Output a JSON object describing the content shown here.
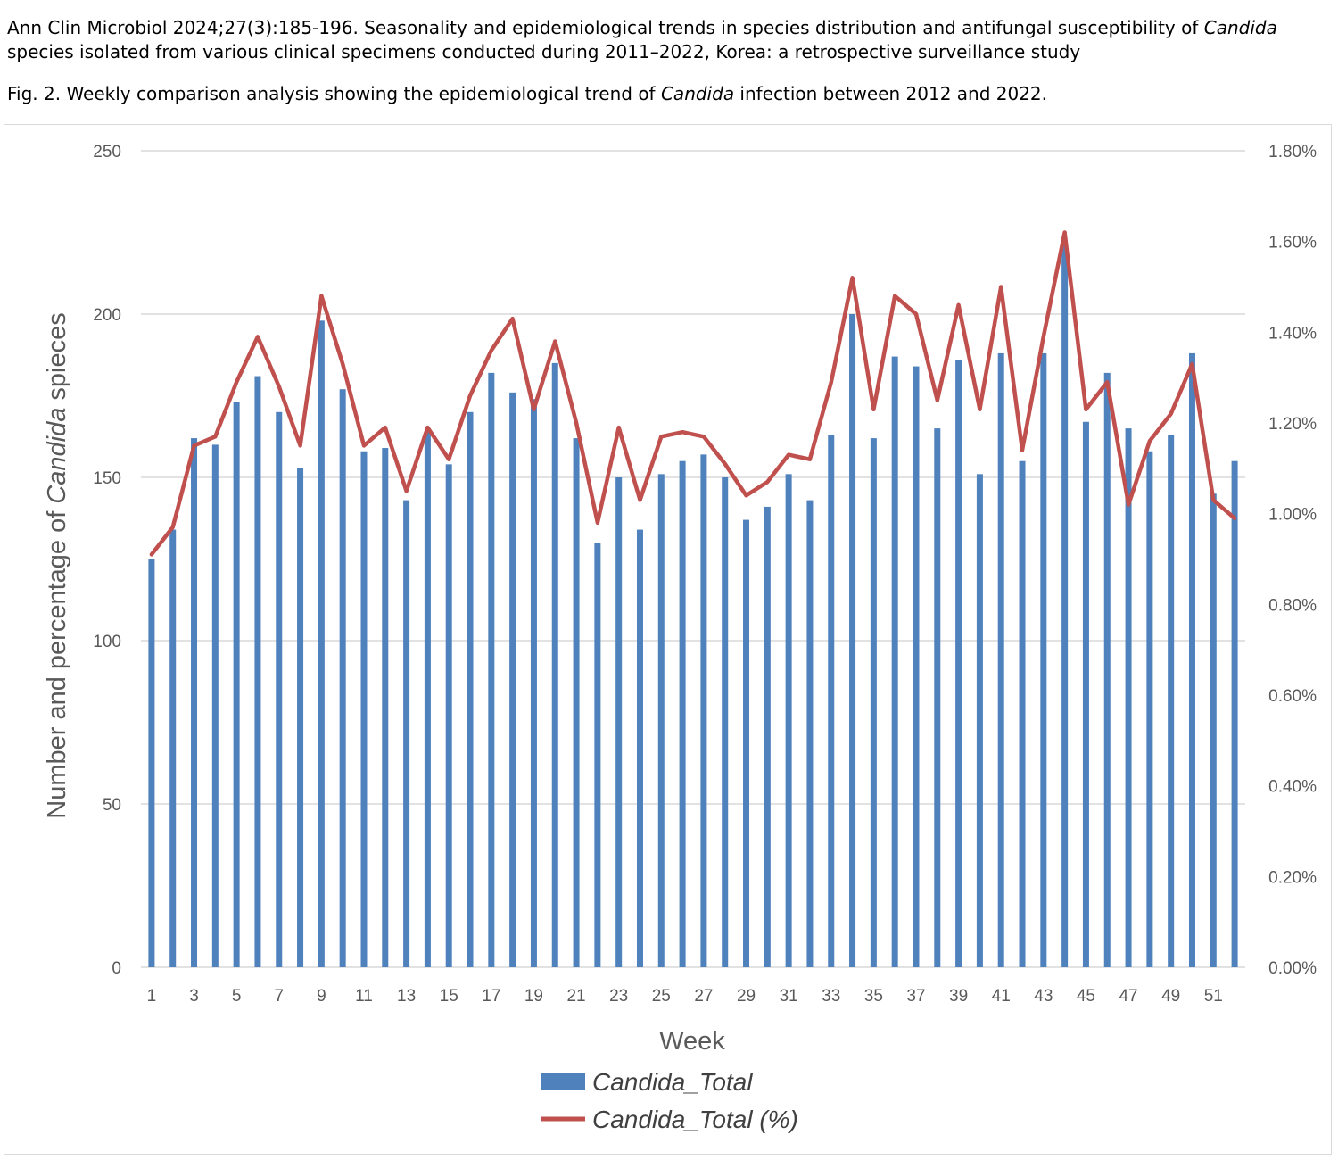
{
  "header": {
    "citation_pre": "Ann Clin Microbiol 2024;27(3):185-196. Seasonality and epidemiological trends in species distribution and antifungal susceptibility of ",
    "citation_italic": "Candida",
    "citation_post": " species isolated from various clinical specimens conducted during 2011–2022, Korea: a retrospective surveillance study",
    "caption_pre": "Fig. 2. Weekly comparison analysis showing the epidemiological trend of ",
    "caption_italic": "Candida",
    "caption_post": " infection between 2012 and 2022."
  },
  "colors": {
    "bar": "#4f81bd",
    "line": "#c0504d",
    "grid": "#d9d9d9",
    "text": "#595959"
  },
  "chart_data": {
    "type": "bar",
    "combo": "bar+line",
    "title": "",
    "xlabel": "Week",
    "ylabel_pre": "Number and percentage of ",
    "ylabel_italic": "Candida",
    "ylabel_post": " spieces",
    "ylim": [
      0,
      250
    ],
    "y_ticks": [
      0,
      50,
      100,
      150,
      200,
      250
    ],
    "y2lim": [
      0,
      1.8
    ],
    "y2_ticks": [
      "0.00%",
      "0.20%",
      "0.40%",
      "0.60%",
      "0.80%",
      "1.00%",
      "1.20%",
      "1.40%",
      "1.60%",
      "1.80%"
    ],
    "x_ticks": [
      "1",
      "3",
      "5",
      "7",
      "9",
      "11",
      "13",
      "15",
      "17",
      "19",
      "21",
      "23",
      "25",
      "27",
      "29",
      "31",
      "33",
      "35",
      "37",
      "39",
      "41",
      "43",
      "45",
      "47",
      "49",
      "51"
    ],
    "categories": [
      1,
      2,
      3,
      4,
      5,
      6,
      7,
      8,
      9,
      10,
      11,
      12,
      13,
      14,
      15,
      16,
      17,
      18,
      19,
      20,
      21,
      22,
      23,
      24,
      25,
      26,
      27,
      28,
      29,
      30,
      31,
      32,
      33,
      34,
      35,
      36,
      37,
      38,
      39,
      40,
      41,
      42,
      43,
      44,
      45,
      46,
      47,
      48,
      49,
      50,
      51,
      52
    ],
    "grid": true,
    "legend_position": "bottom",
    "series": [
      {
        "name": "Candida_Total",
        "type": "bar",
        "axis": "left",
        "values": [
          125,
          134,
          162,
          160,
          173,
          181,
          170,
          153,
          198,
          177,
          158,
          159,
          143,
          164,
          154,
          170,
          182,
          176,
          174,
          185,
          162,
          130,
          150,
          134,
          151,
          155,
          157,
          150,
          137,
          141,
          151,
          143,
          163,
          200,
          162,
          187,
          184,
          165,
          186,
          151,
          188,
          155,
          188,
          221,
          167,
          182,
          165,
          158,
          163,
          188,
          145,
          155
        ]
      },
      {
        "name": "Candida_Total (%)",
        "type": "line",
        "axis": "right",
        "values": [
          0.91,
          0.97,
          1.15,
          1.17,
          1.29,
          1.39,
          1.28,
          1.15,
          1.48,
          1.33,
          1.15,
          1.19,
          1.05,
          1.19,
          1.12,
          1.26,
          1.36,
          1.43,
          1.23,
          1.38,
          1.2,
          0.98,
          1.19,
          1.03,
          1.17,
          1.18,
          1.17,
          1.11,
          1.04,
          1.07,
          1.13,
          1.12,
          1.29,
          1.52,
          1.23,
          1.48,
          1.44,
          1.25,
          1.46,
          1.23,
          1.5,
          1.14,
          1.39,
          1.62,
          1.23,
          1.29,
          1.02,
          1.16,
          1.22,
          1.33,
          1.03,
          0.99
        ]
      }
    ]
  }
}
